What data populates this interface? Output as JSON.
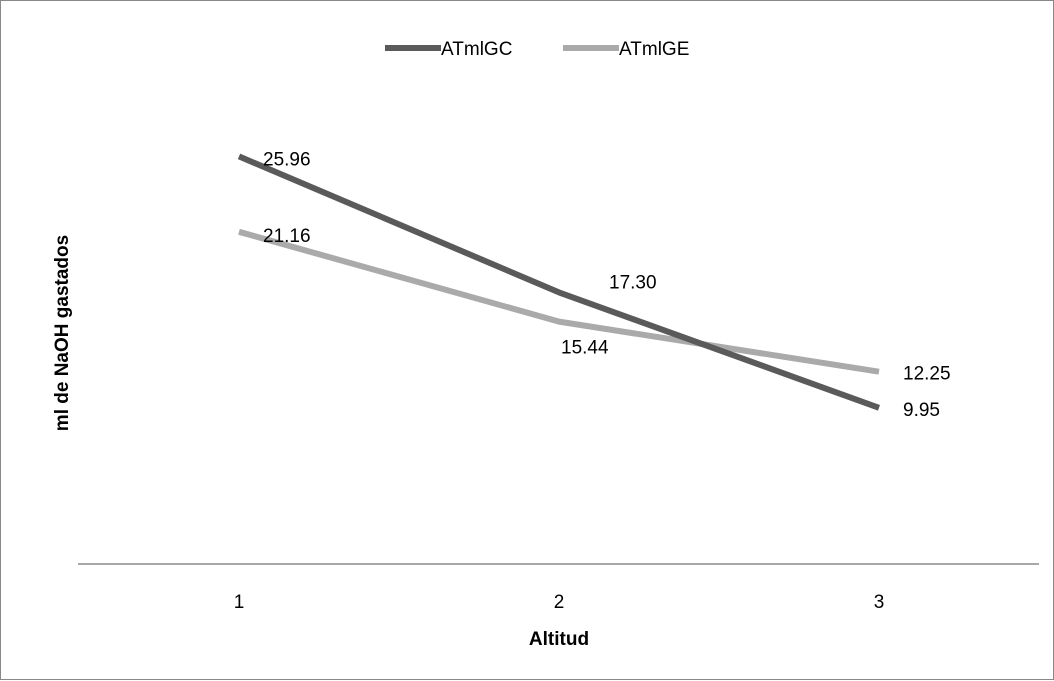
{
  "chart_data": {
    "type": "line",
    "categories": [
      "1",
      "2",
      "3"
    ],
    "series": [
      {
        "name": "ATmlGC",
        "values": [
          25.96,
          17.3,
          9.95
        ],
        "labels": [
          "25.96",
          "17.30",
          "9.95"
        ],
        "color": "#5a5a5a"
      },
      {
        "name": "ATmlGE",
        "values": [
          21.16,
          15.44,
          12.25
        ],
        "labels": [
          "21.16",
          "15.44",
          "12.25"
        ],
        "color": "#aaaaaa"
      }
    ],
    "title": "",
    "xlabel": "Altitud",
    "ylabel": "ml de NaOH gastados",
    "ylim": [
      0,
      35
    ],
    "grid": false,
    "legend": "top-center",
    "axis_color": "#8c8c8c"
  }
}
